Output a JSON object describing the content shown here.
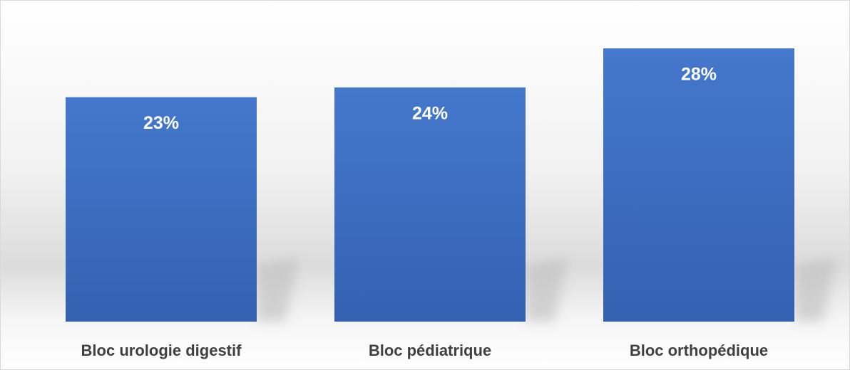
{
  "chart_data": {
    "type": "bar",
    "categories": [
      "Bloc urologie digestif",
      "Bloc pédiatrique",
      "Bloc orthopédique"
    ],
    "values": [
      23,
      24,
      28
    ],
    "value_labels": [
      "23%",
      "24%",
      "28%"
    ],
    "color": "#4472c4"
  }
}
